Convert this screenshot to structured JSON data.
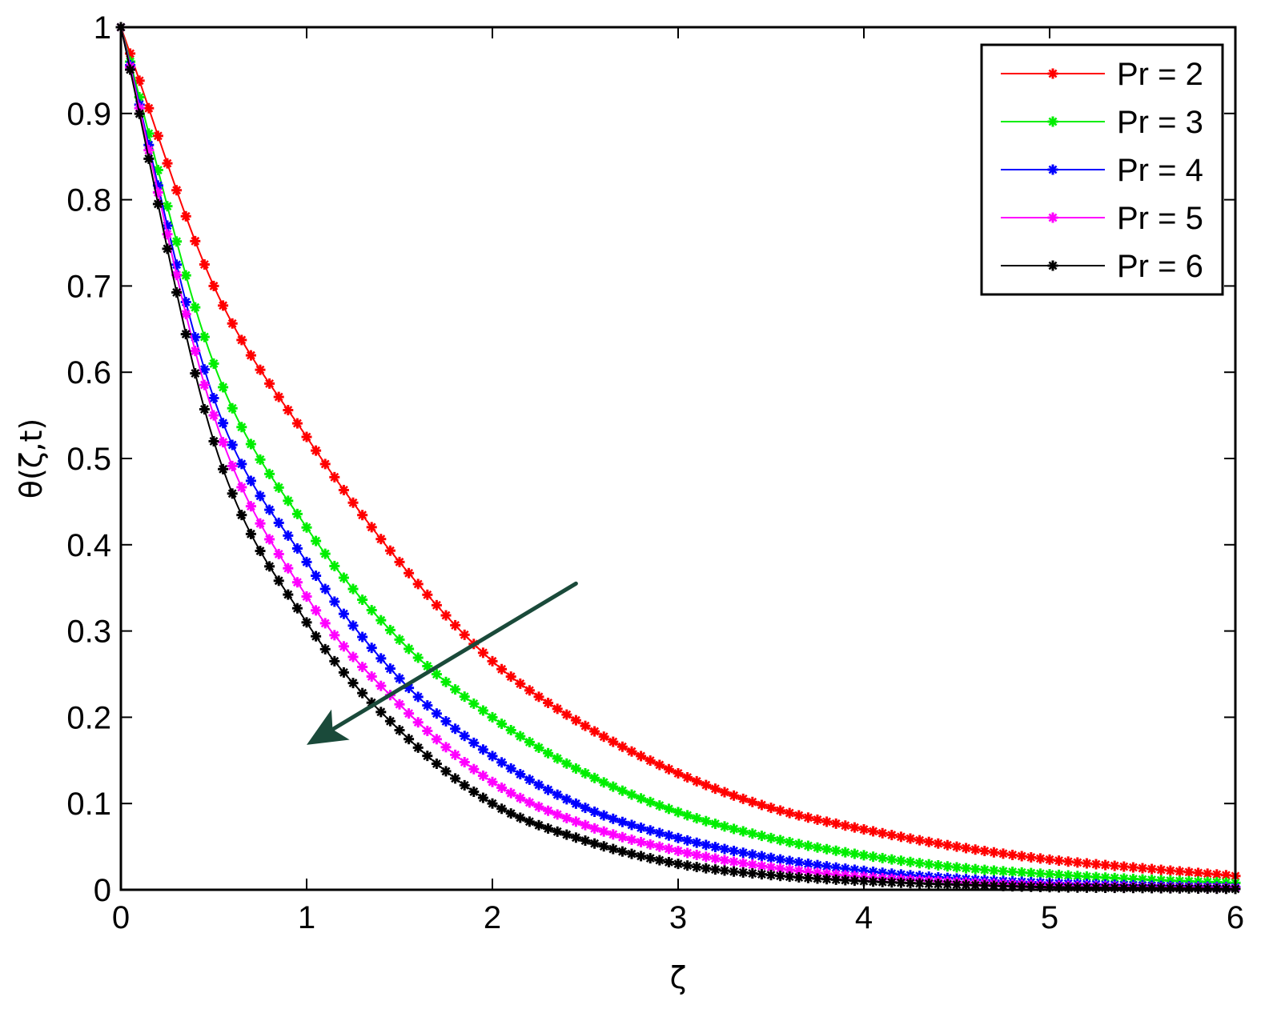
{
  "chart_data": {
    "type": "line",
    "title": "",
    "xlabel": "ζ",
    "ylabel": "θ(ζ,t)",
    "xlim": [
      0,
      6
    ],
    "ylim": [
      0,
      1
    ],
    "xticks": [
      0,
      1,
      2,
      3,
      4,
      5,
      6
    ],
    "xtick_labels": [
      "0",
      "1",
      "2",
      "3",
      "4",
      "5",
      "6"
    ],
    "yticks": [
      0,
      0.1,
      0.2,
      0.3,
      0.4,
      0.5,
      0.6,
      0.7,
      0.8,
      0.9,
      1
    ],
    "ytick_labels": [
      "0",
      "0.1",
      "0.2",
      "0.3",
      "0.4",
      "0.5",
      "0.6",
      "0.7",
      "0.8",
      "0.9",
      "1"
    ],
    "grid": false,
    "legend_position": "top-right",
    "marker": "star",
    "x": [
      0,
      0.5,
      1,
      1.5,
      2,
      2.5,
      3,
      3.5,
      4,
      4.5,
      5,
      5.5,
      6
    ],
    "series": [
      {
        "name": "Pr = 2",
        "color": "#ff0000",
        "values": [
          1,
          0.7,
          0.525,
          0.38,
          0.265,
          0.19,
          0.135,
          0.095,
          0.07,
          0.05,
          0.035,
          0.025,
          0.016
        ]
      },
      {
        "name": "Pr = 3",
        "color": "#00ee00",
        "values": [
          1,
          0.61,
          0.42,
          0.29,
          0.2,
          0.135,
          0.09,
          0.06,
          0.04,
          0.026,
          0.018,
          0.012,
          0.008
        ]
      },
      {
        "name": "Pr = 4",
        "color": "#0000ff",
        "values": [
          1,
          0.57,
          0.38,
          0.245,
          0.155,
          0.095,
          0.06,
          0.037,
          0.022,
          0.013,
          0.008,
          0.005,
          0.003
        ]
      },
      {
        "name": "Pr = 5",
        "color": "#ff00ff",
        "values": [
          1,
          0.55,
          0.34,
          0.215,
          0.125,
          0.075,
          0.045,
          0.026,
          0.015,
          0.009,
          0.005,
          0.003,
          0.002
        ]
      },
      {
        "name": "Pr = 6",
        "color": "#000000",
        "values": [
          1,
          0.52,
          0.31,
          0.185,
          0.1,
          0.057,
          0.03,
          0.017,
          0.01,
          0.006,
          0.003,
          0.002,
          0.001
        ]
      }
    ],
    "annotations": [
      {
        "type": "arrow",
        "color": "#1a4a3a",
        "from": [
          2.45,
          0.355
        ],
        "to": [
          1.0,
          0.168
        ]
      }
    ]
  }
}
